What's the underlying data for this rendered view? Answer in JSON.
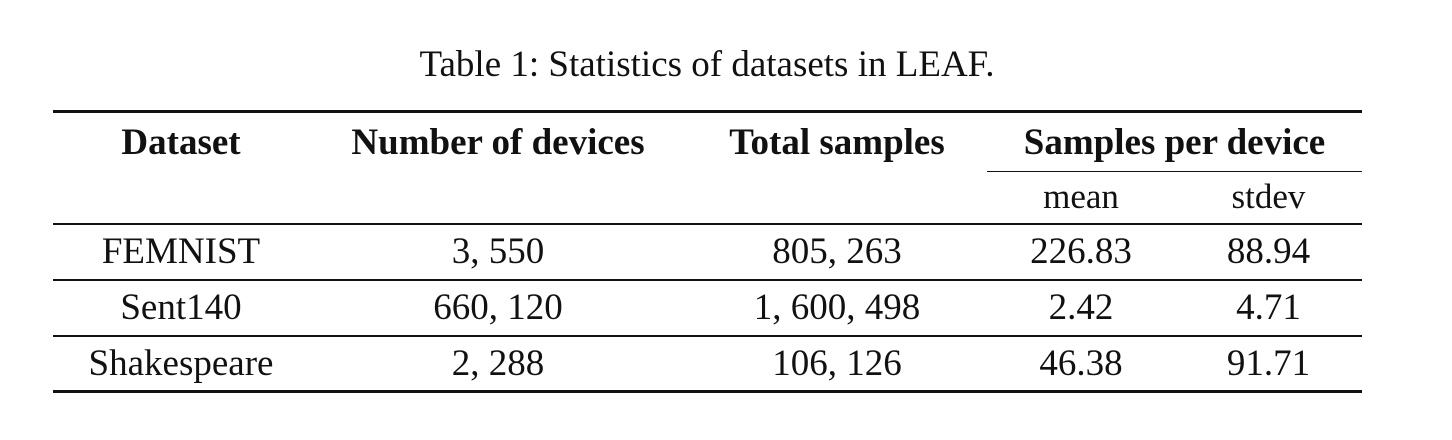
{
  "caption": "Table 1: Statistics of datasets in LEAF.",
  "table": {
    "headers": {
      "dataset": "Dataset",
      "devices": "Number of devices",
      "total": "Total samples",
      "per_device": "Samples per device",
      "mean": "mean",
      "stdev": "stdev"
    },
    "rows": [
      {
        "dataset": "FEMNIST",
        "devices": "3, 550",
        "total": "805, 263",
        "mean": "226.83",
        "stdev": "88.94"
      },
      {
        "dataset": "Sent140",
        "devices": "660, 120",
        "total": "1, 600, 498",
        "mean": "2.42",
        "stdev": "4.71"
      },
      {
        "dataset": "Shakespeare",
        "devices": "2, 288",
        "total": "106, 126",
        "mean": "46.38",
        "stdev": "91.71"
      }
    ]
  }
}
